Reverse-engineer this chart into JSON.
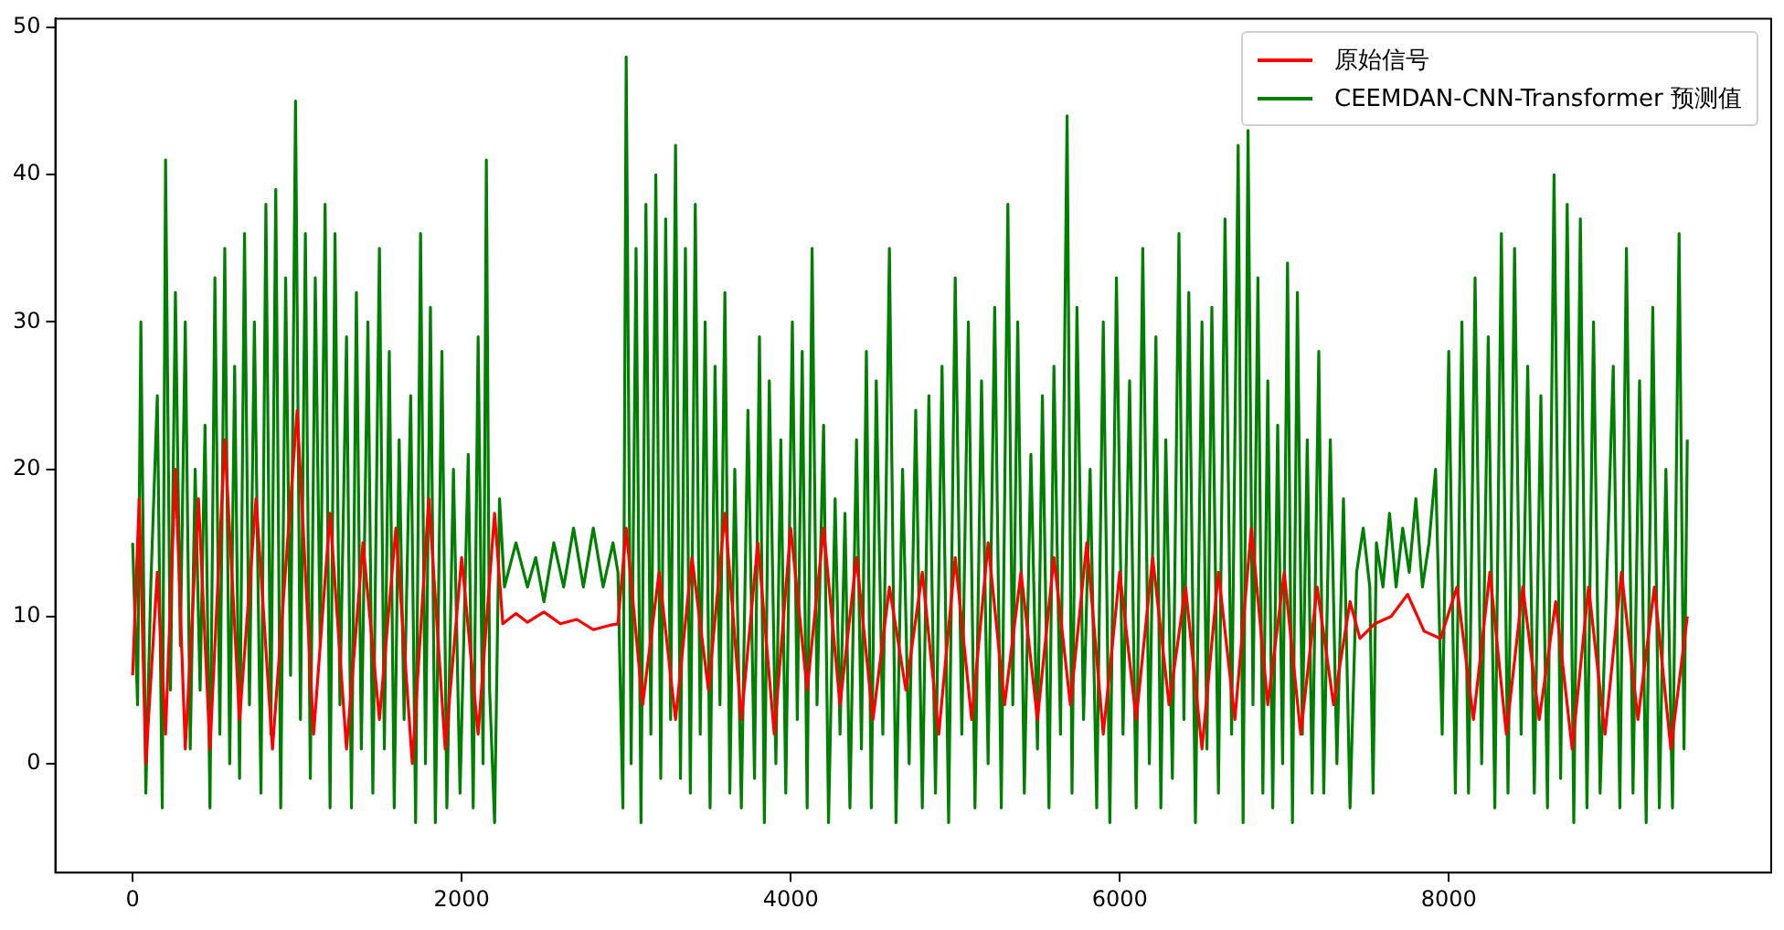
{
  "chart_data": {
    "type": "line",
    "xlim": [
      -470,
      9960
    ],
    "ylim": [
      -7.4,
      50.6
    ],
    "xticks": [
      0,
      2000,
      4000,
      6000,
      8000
    ],
    "yticks": [
      0,
      10,
      20,
      30,
      40,
      50
    ],
    "grid": false,
    "legend": "top right",
    "marker": "none",
    "line_style": "solid",
    "series": [
      {
        "name": "原始信号",
        "color": "#ff0000",
        "x": [
          0,
          40,
          80,
          150,
          200,
          260,
          320,
          400,
          470,
          560,
          650,
          750,
          850,
          1000,
          1100,
          1200,
          1300,
          1400,
          1500,
          1600,
          1700,
          1800,
          1900,
          2000,
          2100,
          2200,
          2250,
          2330,
          2400,
          2500,
          2600,
          2700,
          2800,
          2900,
          2950,
          3000,
          3100,
          3200,
          3300,
          3400,
          3500,
          3600,
          3700,
          3800,
          3900,
          4000,
          4100,
          4200,
          4300,
          4400,
          4500,
          4600,
          4700,
          4800,
          4900,
          5000,
          5100,
          5200,
          5300,
          5400,
          5500,
          5600,
          5700,
          5800,
          5900,
          6000,
          6100,
          6200,
          6300,
          6400,
          6500,
          6600,
          6700,
          6800,
          6900,
          7000,
          7100,
          7200,
          7300,
          7400,
          7460,
          7550,
          7650,
          7750,
          7850,
          7950,
          8050,
          8150,
          8250,
          8350,
          8450,
          8550,
          8650,
          8750,
          8850,
          8950,
          9050,
          9150,
          9250,
          9350,
          9450
        ],
        "values": [
          6,
          18,
          0,
          13,
          2,
          20,
          1,
          18,
          1,
          22,
          3,
          18,
          1,
          24,
          2,
          17,
          1,
          15,
          3,
          16,
          0,
          18,
          1,
          14,
          2,
          17,
          9.5,
          10.2,
          9.6,
          10.3,
          9.5,
          9.8,
          9.1,
          9.4,
          9.5,
          16,
          4,
          13,
          3,
          14,
          5,
          17,
          3,
          15,
          2,
          16,
          5,
          16,
          4,
          14,
          3,
          12,
          5,
          13,
          2,
          14,
          3,
          15,
          4,
          13,
          3,
          14,
          4,
          15,
          2,
          13,
          3,
          14,
          4,
          12,
          1,
          13,
          3,
          16,
          4,
          13,
          2,
          12,
          4,
          11,
          8.5,
          9.5,
          10,
          11.5,
          9,
          8.5,
          12,
          3,
          13,
          2,
          12,
          3,
          11,
          1,
          12,
          2,
          13,
          3,
          12,
          1,
          10
        ]
      },
      {
        "name": "CEEMDAN-CNN-Transformer 预测值",
        "color": "#008000",
        "x": [
          0,
          30,
          50,
          80,
          110,
          150,
          180,
          200,
          230,
          260,
          290,
          320,
          350,
          380,
          410,
          440,
          470,
          500,
          530,
          560,
          590,
          620,
          650,
          680,
          710,
          740,
          780,
          810,
          840,
          870,
          900,
          930,
          960,
          990,
          1020,
          1050,
          1080,
          1110,
          1140,
          1170,
          1200,
          1230,
          1260,
          1300,
          1330,
          1360,
          1390,
          1430,
          1460,
          1500,
          1530,
          1560,
          1590,
          1620,
          1650,
          1690,
          1720,
          1750,
          1780,
          1810,
          1840,
          1880,
          1910,
          1950,
          1990,
          2040,
          2070,
          2100,
          2130,
          2150,
          2170,
          2200,
          2230,
          2260,
          2330,
          2400,
          2450,
          2500,
          2560,
          2620,
          2680,
          2740,
          2800,
          2860,
          2920,
          2950,
          2980,
          3000,
          3030,
          3060,
          3090,
          3120,
          3150,
          3180,
          3210,
          3240,
          3270,
          3300,
          3330,
          3360,
          3390,
          3420,
          3450,
          3480,
          3510,
          3540,
          3570,
          3600,
          3630,
          3660,
          3700,
          3740,
          3780,
          3810,
          3840,
          3870,
          3910,
          3940,
          3970,
          4010,
          4040,
          4070,
          4100,
          4130,
          4160,
          4200,
          4230,
          4270,
          4300,
          4330,
          4360,
          4400,
          4430,
          4460,
          4490,
          4520,
          4560,
          4600,
          4640,
          4680,
          4720,
          4760,
          4800,
          4840,
          4880,
          4920,
          4960,
          5000,
          5040,
          5080,
          5120,
          5160,
          5200,
          5240,
          5280,
          5320,
          5350,
          5380,
          5420,
          5460,
          5500,
          5530,
          5570,
          5600,
          5640,
          5680,
          5710,
          5740,
          5780,
          5820,
          5860,
          5900,
          5940,
          5980,
          6020,
          6060,
          6100,
          6140,
          6180,
          6220,
          6250,
          6280,
          6320,
          6360,
          6390,
          6420,
          6460,
          6500,
          6530,
          6560,
          6600,
          6640,
          6680,
          6720,
          6750,
          6780,
          6810,
          6840,
          6870,
          6900,
          6930,
          6960,
          6990,
          7020,
          7050,
          7080,
          7110,
          7140,
          7170,
          7210,
          7240,
          7280,
          7320,
          7360,
          7400,
          7440,
          7480,
          7520,
          7540,
          7560,
          7600,
          7640,
          7680,
          7720,
          7760,
          7800,
          7840,
          7880,
          7920,
          7960,
          8000,
          8040,
          8080,
          8120,
          8160,
          8200,
          8240,
          8280,
          8320,
          8360,
          8400,
          8440,
          8480,
          8520,
          8560,
          8600,
          8640,
          8680,
          8720,
          8760,
          8800,
          8840,
          8880,
          8920,
          9000,
          9040,
          9080,
          9120,
          9160,
          9200,
          9240,
          9280,
          9320,
          9360,
          9400,
          9430,
          9450
        ],
        "values": [
          15,
          4,
          30,
          -2,
          12,
          25,
          -3,
          41,
          5,
          32,
          8,
          30,
          1,
          20,
          5,
          23,
          -3,
          33,
          2,
          35,
          0,
          27,
          -1,
          36,
          4,
          30,
          -2,
          38,
          2,
          39,
          -3,
          33,
          6,
          45,
          3,
          36,
          -1,
          33,
          8,
          38,
          -3,
          36,
          4,
          29,
          -3,
          32,
          1,
          30,
          -2,
          35,
          1,
          28,
          -3,
          22,
          3,
          25,
          -4,
          36,
          0,
          31,
          -4,
          28,
          -3,
          20,
          -2,
          21,
          -3,
          29,
          0,
          41,
          5,
          -4,
          18,
          12,
          15,
          12,
          14,
          11,
          15,
          12,
          16,
          12,
          16,
          12,
          15,
          13,
          -3,
          48,
          0,
          35,
          -4,
          38,
          2,
          40,
          -1,
          37,
          3,
          42,
          -1,
          35,
          -2,
          38,
          2,
          30,
          -3,
          27,
          4,
          32,
          -2,
          20,
          -3,
          24,
          -1,
          29,
          -4,
          26,
          0,
          22,
          -2,
          30,
          3,
          28,
          -3,
          35,
          4,
          23,
          -4,
          18,
          2,
          17,
          -3,
          22,
          1,
          28,
          -3,
          26,
          2,
          35,
          -4,
          20,
          0,
          24,
          -3,
          25,
          -2,
          27,
          -4,
          33,
          2,
          30,
          -3,
          26,
          0,
          31,
          -3,
          38,
          4,
          30,
          -2,
          21,
          1,
          25,
          -3,
          27,
          2,
          44,
          -2,
          31,
          3,
          20,
          -3,
          30,
          -4,
          33,
          2,
          26,
          -3,
          35,
          0,
          29,
          -3,
          22,
          -1,
          36,
          3,
          32,
          -4,
          30,
          1,
          31,
          -2,
          37,
          2,
          42,
          -4,
          43,
          4,
          33,
          -2,
          26,
          -3,
          23,
          0,
          34,
          -4,
          32,
          2,
          22,
          -2,
          28,
          -2,
          22,
          0,
          18,
          -3,
          13,
          16,
          12,
          -2,
          15,
          12,
          17,
          12,
          16,
          13,
          18,
          12,
          15,
          20,
          2,
          28,
          -2,
          30,
          -2,
          33,
          0,
          29,
          -3,
          36,
          -2,
          35,
          2,
          27,
          -2,
          25,
          -3,
          40,
          -1,
          38,
          -4,
          37,
          -3,
          30,
          -2,
          27,
          -3,
          35,
          -2,
          26,
          -4,
          31,
          -3,
          20,
          -3,
          36,
          1,
          22
        ]
      }
    ]
  }
}
